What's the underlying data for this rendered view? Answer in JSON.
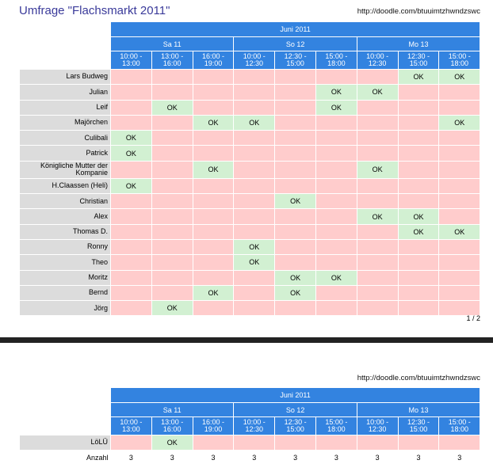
{
  "title": "Umfrage \"Flachsmarkt 2011\"",
  "url": "http://doodle.com/btuuimtzhwndzswc",
  "month": "Juni 2011",
  "days": [
    "Sa 11",
    "So 12",
    "Mo 13"
  ],
  "times": [
    "10:00 - 13:00",
    "13:00 - 16:00",
    "16:00 - 19:00",
    "10:00 - 12:30",
    "12:30 - 15:00",
    "15:00 - 18:00",
    "10:00 - 12:30",
    "12:30 - 15:00",
    "15:00 - 18:00"
  ],
  "ok_label": "OK",
  "page_label": "1 / 2",
  "page1_rows": [
    {
      "name": "Lars Budweg",
      "ok": [
        7,
        8
      ]
    },
    {
      "name": "Julian",
      "ok": [
        5,
        6
      ]
    },
    {
      "name": "Leif",
      "ok": [
        1,
        5
      ]
    },
    {
      "name": "Majörchen",
      "ok": [
        2,
        3,
        8
      ]
    },
    {
      "name": "Culibali",
      "ok": [
        0
      ]
    },
    {
      "name": "Patrick",
      "ok": [
        0
      ]
    },
    {
      "name": "Königliche Mutter der Kompanie",
      "ok": [
        2,
        6
      ]
    },
    {
      "name": "H.Claassen (Heli)",
      "ok": [
        0
      ]
    },
    {
      "name": "Christian",
      "ok": [
        4
      ]
    },
    {
      "name": "Alex",
      "ok": [
        6,
        7
      ]
    },
    {
      "name": "Thomas D.",
      "ok": [
        7,
        8
      ]
    },
    {
      "name": "Ronny",
      "ok": [
        3
      ]
    },
    {
      "name": "Theo",
      "ok": [
        3
      ]
    },
    {
      "name": "Moritz",
      "ok": [
        4,
        5
      ]
    },
    {
      "name": "Bernd",
      "ok": [
        2,
        4
      ]
    },
    {
      "name": "Jörg",
      "ok": [
        1
      ]
    }
  ],
  "page2_rows": [
    {
      "name": "LöLÜ",
      "ok": [
        1
      ]
    }
  ],
  "count_label": "Anzahl",
  "counts": [
    "3",
    "3",
    "3",
    "3",
    "3",
    "3",
    "3",
    "3",
    "3"
  ]
}
